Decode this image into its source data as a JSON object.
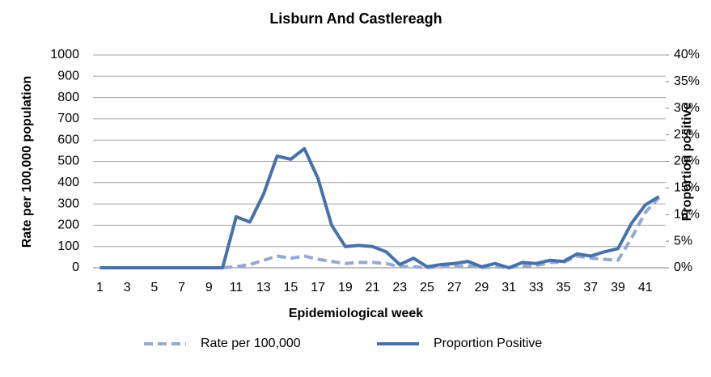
{
  "chart_data": {
    "type": "line",
    "title": "Lisburn And Castlereagh",
    "x_label": "Epidemiological week",
    "y_label": "Rate per 100,000 population",
    "y2_label": "Proportion positive",
    "categories": [
      "1",
      null,
      "3",
      null,
      "5",
      null,
      "7",
      null,
      "9",
      null,
      "11",
      null,
      "13",
      null,
      "15",
      null,
      "17",
      null,
      "19",
      null,
      "21",
      null,
      "23",
      null,
      "25",
      null,
      "27",
      null,
      "29",
      null,
      "31",
      null,
      "33",
      null,
      "35",
      null,
      "37",
      null,
      "39",
      null,
      "41",
      null
    ],
    "ylim": [
      0,
      1000
    ],
    "yticks": [
      0,
      100,
      200,
      300,
      400,
      500,
      600,
      700,
      800,
      900,
      1000
    ],
    "y2lim": [
      0,
      40
    ],
    "y2ticks": [
      {
        "value": 0,
        "label": "0%"
      },
      {
        "value": 5,
        "label": "5%"
      },
      {
        "value": 10,
        "label": "10%"
      },
      {
        "value": 15,
        "label": "15%"
      },
      {
        "value": 20,
        "label": "20%"
      },
      {
        "value": 25,
        "label": "25%"
      },
      {
        "value": 30,
        "label": "30%"
      },
      {
        "value": 35,
        "label": "35%"
      },
      {
        "value": 40,
        "label": "40%"
      }
    ],
    "grid": true,
    "legend": "bottom",
    "series": [
      {
        "name": "Rate per 100,000",
        "color": "#94a9d3",
        "dashed": true,
        "values": [
          0,
          0,
          0,
          0,
          0,
          0,
          0,
          0,
          0,
          0,
          5,
          15,
          35,
          55,
          45,
          55,
          40,
          30,
          20,
          25,
          25,
          20,
          5,
          5,
          0,
          5,
          5,
          10,
          0,
          5,
          0,
          10,
          10,
          25,
          25,
          55,
          45,
          40,
          35,
          140,
          260,
          330
        ]
      },
      {
        "name": "Proportion Positive",
        "color": "#4671aa",
        "axis": "y2",
        "values": [
          0,
          0,
          0,
          0,
          0,
          0,
          0,
          0,
          0,
          0,
          9.6,
          8.6,
          13.8,
          21,
          20.4,
          22.4,
          16.8,
          8,
          4,
          4.2,
          4,
          3,
          0.6,
          1.8,
          0.2,
          0.6,
          0.8,
          1.2,
          0.2,
          0.8,
          0,
          1,
          0.8,
          1.4,
          1.2,
          2.6,
          2.2,
          3,
          3.6,
          8.4,
          11.8,
          13.4
        ]
      }
    ]
  }
}
